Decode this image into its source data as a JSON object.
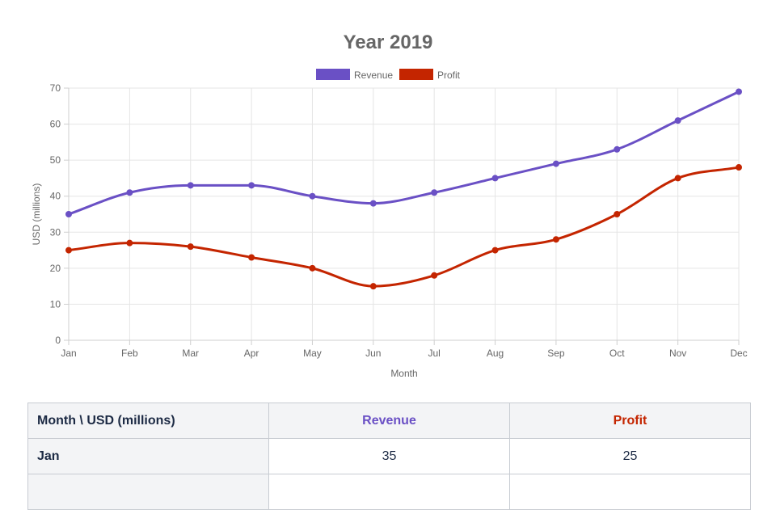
{
  "chart_data": {
    "type": "line",
    "title": "Year 2019",
    "xlabel": "Month",
    "ylabel": "USD (millions)",
    "categories": [
      "Jan",
      "Feb",
      "Mar",
      "Apr",
      "May",
      "Jun",
      "Jul",
      "Aug",
      "Sep",
      "Oct",
      "Nov",
      "Dec"
    ],
    "ylim": [
      0,
      70
    ],
    "yticks": [
      0,
      10,
      20,
      30,
      40,
      50,
      60,
      70
    ],
    "grid": true,
    "legend_position": "top",
    "series": [
      {
        "name": "Revenue",
        "color": "#6a50c5",
        "values": [
          35,
          41,
          43,
          43,
          40,
          38,
          41,
          45,
          49,
          53,
          61,
          69
        ]
      },
      {
        "name": "Profit",
        "color": "#c42500",
        "values": [
          25,
          27,
          26,
          23,
          20,
          15,
          18,
          25,
          28,
          35,
          45,
          48
        ]
      }
    ]
  },
  "table": {
    "corner_header": "Month \\ USD (millions)",
    "columns": [
      "Revenue",
      "Profit"
    ],
    "rows": [
      {
        "month": "Jan",
        "revenue": "35",
        "profit": "25"
      }
    ]
  }
}
